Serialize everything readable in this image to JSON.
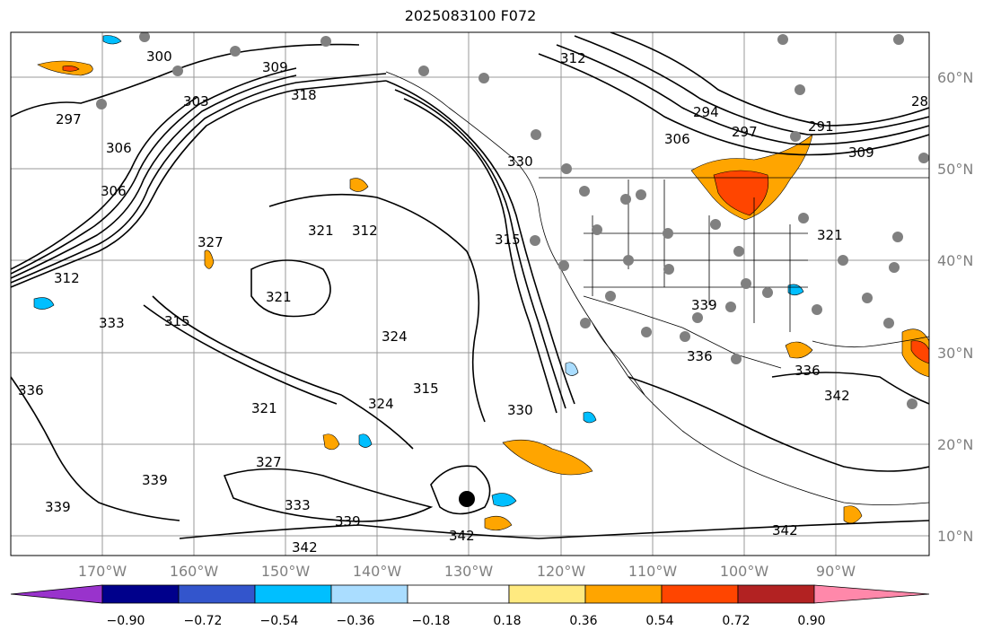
{
  "title": "2025083100 F072",
  "map": {
    "lat_labels": [
      "60°N",
      "50°N",
      "40°N",
      "30°N",
      "20°N",
      "10°N"
    ],
    "lon_labels": [
      "170°W",
      "160°W",
      "150°W",
      "140°W",
      "130°W",
      "120°W",
      "110°W",
      "100°W",
      "90°W"
    ],
    "contour_labels": [
      {
        "text": "300"
      },
      {
        "text": "309"
      },
      {
        "text": "303"
      },
      {
        "text": "318"
      },
      {
        "text": "297"
      },
      {
        "text": "306"
      },
      {
        "text": "306"
      },
      {
        "text": "312"
      },
      {
        "text": "321"
      },
      {
        "text": "327"
      },
      {
        "text": "312"
      },
      {
        "text": "333"
      },
      {
        "text": "315"
      },
      {
        "text": "321"
      },
      {
        "text": "324"
      },
      {
        "text": "315"
      },
      {
        "text": "330"
      },
      {
        "text": "321"
      },
      {
        "text": "324"
      },
      {
        "text": "327"
      },
      {
        "text": "333"
      },
      {
        "text": "339"
      },
      {
        "text": "342"
      },
      {
        "text": "342"
      },
      {
        "text": "339"
      },
      {
        "text": "339"
      },
      {
        "text": "336"
      },
      {
        "text": "315"
      },
      {
        "text": "312"
      },
      {
        "text": "294"
      },
      {
        "text": "297"
      },
      {
        "text": "291"
      },
      {
        "text": "306"
      },
      {
        "text": "309"
      },
      {
        "text": "321"
      },
      {
        "text": "336"
      },
      {
        "text": "342"
      },
      {
        "text": "342"
      },
      {
        "text": "339"
      },
      {
        "text": "336"
      },
      {
        "text": "330"
      },
      {
        "text": "28"
      }
    ]
  },
  "colorbar": {
    "labels": [
      "−0.90",
      "−0.72",
      "−0.54",
      "−0.36",
      "−0.18",
      "0.18",
      "0.36",
      "0.54",
      "0.72",
      "0.90"
    ],
    "colors": [
      "#9933cc",
      "#00008b",
      "#3355cc",
      "#00bfff",
      "#aaddff",
      "#ffffff",
      "#ffea80",
      "#ffa500",
      "#ff4500",
      "#b22222",
      "#ff88aa"
    ]
  }
}
